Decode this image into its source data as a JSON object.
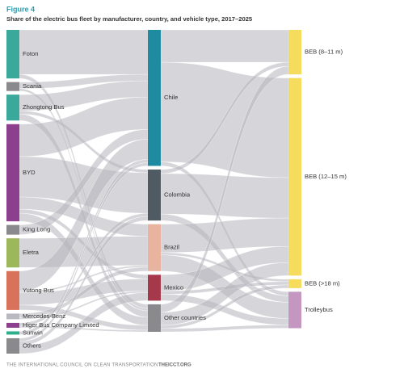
{
  "chart_data": {
    "type": "sankey",
    "title": "Figure 4",
    "subtitle": "Share of the electric bus fleet by manufacturer, country, and vehicle type, 2017–2025",
    "source": "THE INTERNATIONAL COUNCIL ON CLEAN TRANSPORTATION",
    "source_url": "THEICCT.ORG",
    "link_color": "#b4b4bb",
    "columns": [
      [
        {
          "name": "Foton",
          "color": "#3aa89a"
        },
        {
          "name": "Scania",
          "color": "#8a8a8c"
        },
        {
          "name": "Zhongtong Bus",
          "color": "#3aa89a"
        },
        {
          "name": "BYD",
          "color": "#8b3f8c"
        },
        {
          "name": "King Long",
          "color": "#8a8a8c"
        },
        {
          "name": "Eletra",
          "color": "#9cb85a"
        },
        {
          "name": "Yutong Bus",
          "color": "#d9725a"
        },
        {
          "name": "Mercedes-Benz",
          "color": "#b9b9c2"
        },
        {
          "name": "Higer Bus Company Limited",
          "color": "#8b3f8c"
        },
        {
          "name": "Sunwin",
          "color": "#2fb08a"
        },
        {
          "name": "Others",
          "color": "#8a8a8c"
        }
      ],
      [
        {
          "name": "Chile",
          "color": "#1f8ba0"
        },
        {
          "name": "Colombia",
          "color": "#4f5a62"
        },
        {
          "name": "Brazil",
          "color": "#e8b4a0"
        },
        {
          "name": "Mexico",
          "color": "#a5384a"
        },
        {
          "name": "Other countries",
          "color": "#8a8a8c"
        }
      ],
      [
        {
          "name": "BEB (8–11 m)",
          "color": "#f6dc5c"
        },
        {
          "name": "BEB (12–15 m)",
          "color": "#f6dc5c"
        },
        {
          "name": "BEB (>18 m)",
          "color": "#f6dc5c"
        },
        {
          "name": "Trolleybus",
          "color": "#c497c0"
        }
      ]
    ],
    "links": [
      {
        "source": "Foton",
        "target": "Chile",
        "value": 55
      },
      {
        "source": "Foton",
        "target": "Other countries",
        "value": 5
      },
      {
        "source": "Scania",
        "target": "Chile",
        "value": 8
      },
      {
        "source": "Scania",
        "target": "Other countries",
        "value": 3
      },
      {
        "source": "Zhongtong Bus",
        "target": "Chile",
        "value": 20
      },
      {
        "source": "Zhongtong Bus",
        "target": "Colombia",
        "value": 4
      },
      {
        "source": "Zhongtong Bus",
        "target": "Other countries",
        "value": 8
      },
      {
        "source": "BYD",
        "target": "Chile",
        "value": 40
      },
      {
        "source": "BYD",
        "target": "Colombia",
        "value": 50
      },
      {
        "source": "BYD",
        "target": "Brazil",
        "value": 15
      },
      {
        "source": "BYD",
        "target": "Mexico",
        "value": 5
      },
      {
        "source": "BYD",
        "target": "Other countries",
        "value": 10
      },
      {
        "source": "King Long",
        "target": "Chile",
        "value": 12
      },
      {
        "source": "Eletra",
        "target": "Brazil",
        "value": 36
      },
      {
        "source": "Yutong Bus",
        "target": "Chile",
        "value": 25
      },
      {
        "source": "Yutong Bus",
        "target": "Brazil",
        "value": 2
      },
      {
        "source": "Yutong Bus",
        "target": "Mexico",
        "value": 15
      },
      {
        "source": "Yutong Bus",
        "target": "Other countries",
        "value": 6
      },
      {
        "source": "Mercedes-Benz",
        "target": "Brazil",
        "value": 5
      },
      {
        "source": "Mercedes-Benz",
        "target": "Mexico",
        "value": 2
      },
      {
        "source": "Higer Bus Company Limited",
        "target": "Colombia",
        "value": 4
      },
      {
        "source": "Higer Bus Company Limited",
        "target": "Other countries",
        "value": 2
      },
      {
        "source": "Sunwin",
        "target": "Chile",
        "value": 4
      },
      {
        "source": "Others",
        "target": "Chile",
        "value": 4
      },
      {
        "source": "Others",
        "target": "Colombia",
        "value": 5
      },
      {
        "source": "Others",
        "target": "Mexico",
        "value": 10
      },
      {
        "source": "Chile",
        "target": "BEB (8–11 m)",
        "value": 40
      },
      {
        "source": "Chile",
        "target": "BEB (12–15 m)",
        "value": 123
      },
      {
        "source": "Chile",
        "target": "Trolleybus",
        "value": 5
      },
      {
        "source": "Colombia",
        "target": "BEB (8–11 m)",
        "value": 5
      },
      {
        "source": "Colombia",
        "target": "BEB (12–15 m)",
        "value": 50
      },
      {
        "source": "Colombia",
        "target": "Trolleybus",
        "value": 8
      },
      {
        "source": "Brazil",
        "target": "BEB (12–15 m)",
        "value": 35
      },
      {
        "source": "Brazil",
        "target": "BEB (>18 m)",
        "value": 3
      },
      {
        "source": "Brazil",
        "target": "Trolleybus",
        "value": 20
      },
      {
        "source": "Mexico",
        "target": "BEB (12–15 m)",
        "value": 20
      },
      {
        "source": "Mexico",
        "target": "BEB (>18 m)",
        "value": 4
      },
      {
        "source": "Mexico",
        "target": "Trolleybus",
        "value": 8
      },
      {
        "source": "Other countries",
        "target": "BEB (8–11 m)",
        "value": 10
      },
      {
        "source": "Other countries",
        "target": "BEB (12–15 m)",
        "value": 16
      },
      {
        "source": "Other countries",
        "target": "BEB (>18 m)",
        "value": 4
      },
      {
        "source": "Other countries",
        "target": "Trolleybus",
        "value": 4
      }
    ]
  }
}
